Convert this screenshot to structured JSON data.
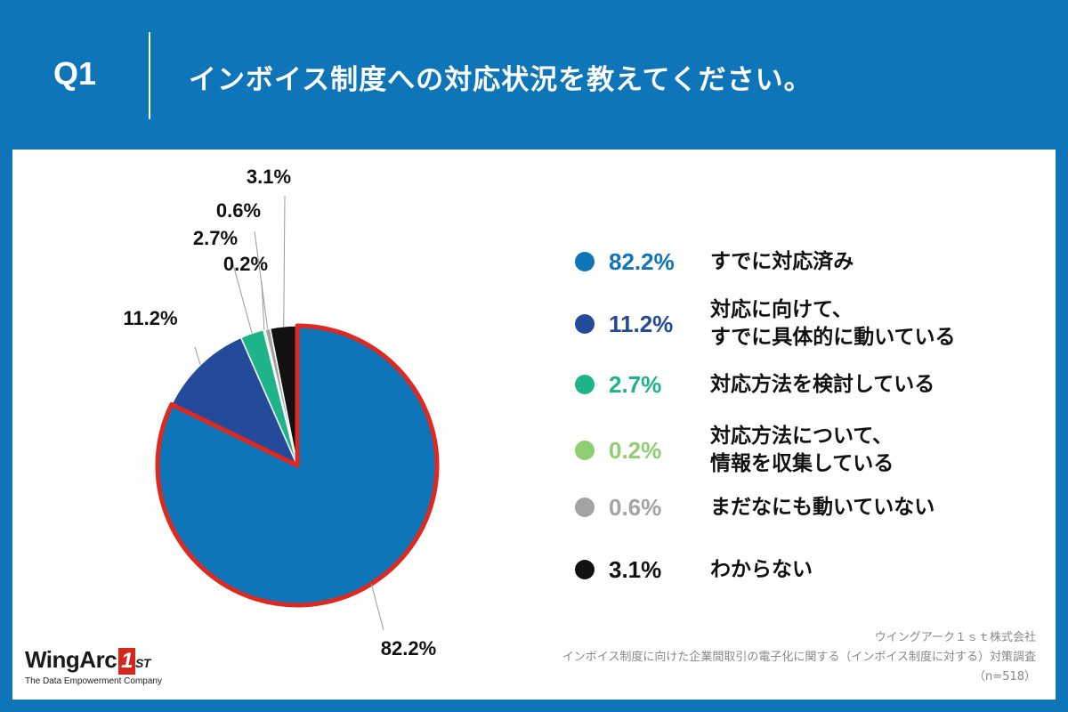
{
  "header": {
    "question_id": "Q1",
    "question": "インボイス制度への対応状況を教えてください。"
  },
  "chart_data": {
    "type": "pie",
    "categories": [
      "すでに対応済み",
      "対応に向けて、\nすでに具体的に動いている",
      "対応方法を検討している",
      "対応方法について、\n情報を収集している",
      "まだなにも動いていない",
      "わからない"
    ],
    "values": [
      82.2,
      11.2,
      2.7,
      0.2,
      0.6,
      3.1
    ],
    "value_labels": [
      "82.2%",
      "11.2%",
      "2.7%",
      "0.2%",
      "0.6%",
      "3.1%"
    ],
    "colors": [
      "#0e76b8",
      "#244a9a",
      "#1fb389",
      "#8fce72",
      "#a3a3a3",
      "#111111"
    ],
    "highlight": {
      "slice_index": 0,
      "color": "#e0281e"
    },
    "legend_position": "right"
  },
  "source": {
    "company": "ウイングアーク１ｓｔ株式会社",
    "survey": "インボイス制度に向けた企業間取引の電子化に関する（インボイス制度に対する）対策調査",
    "sample": "（n=518）"
  },
  "logo": {
    "name": "WingArc",
    "mark": "1",
    "mark_suffix": "ST",
    "tagline": "The Data Empowerment Company"
  }
}
